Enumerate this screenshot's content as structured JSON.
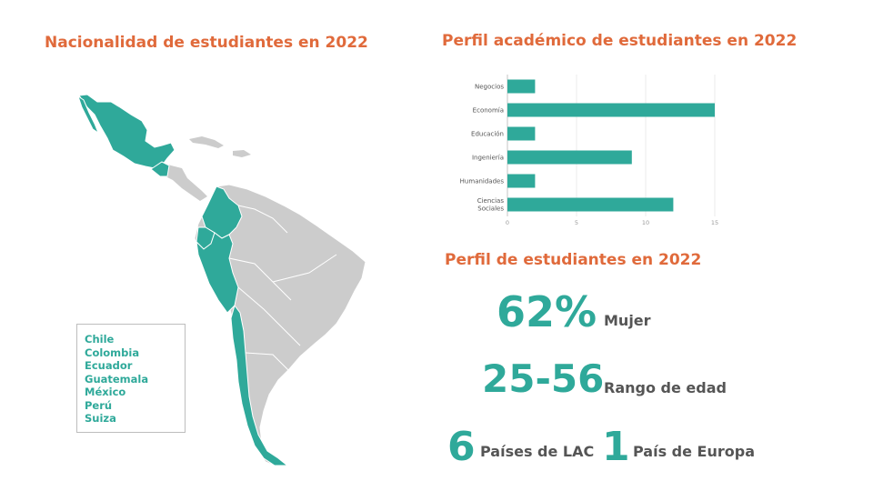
{
  "titles": {
    "map": "Nacionalidad de estudiantes en 2022",
    "chart": "Perfil académico de estudiantes en 2022",
    "profile": "Perfil de estudiantes en 2022"
  },
  "legend": [
    "Chile",
    "Colombia",
    "Ecuador",
    "Guatemala",
    "México",
    "Perú",
    "Suiza"
  ],
  "colors": {
    "accent": "#2fa99a",
    "title": "#e06a3b",
    "land": "#cccccc",
    "label": "#555555"
  },
  "chart_data": {
    "type": "bar",
    "orientation": "horizontal",
    "categories": [
      "Negocios",
      "Economía",
      "Educación",
      "Ingeniería",
      "Humanidades",
      "Ciencias Sociales"
    ],
    "values": [
      2,
      15,
      2,
      9,
      2,
      12
    ],
    "xlim": [
      0,
      15
    ],
    "xticks": [
      "0",
      "5",
      "10",
      "15"
    ],
    "grid": true,
    "title": "",
    "xlabel": "",
    "ylabel": ""
  },
  "stats": {
    "women_value": "62%",
    "women_label": "Mujer",
    "age_value": "25-56",
    "age_label": "Rango de edad",
    "lac_value": "6",
    "lac_label": "Países de LAC",
    "europe_value": "1",
    "europe_label": "País de Europa"
  }
}
